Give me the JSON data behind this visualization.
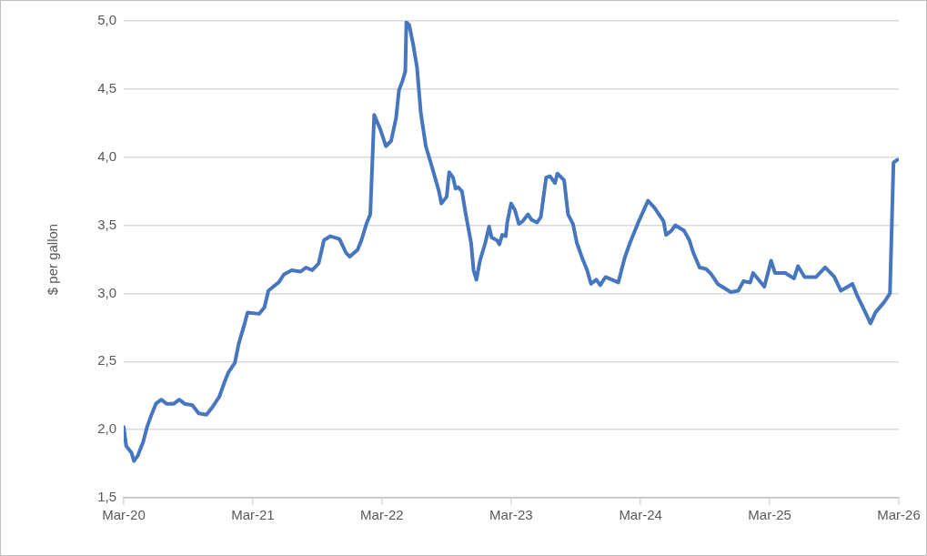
{
  "chart_data": {
    "type": "line",
    "ylabel": "$ per gallon",
    "x": [
      "2020-03-01",
      "2020-03-08",
      "2020-03-23",
      "2020-03-30",
      "2020-04-10",
      "2020-04-25",
      "2020-05-06",
      "2020-05-20",
      "2020-05-31",
      "2020-06-15",
      "2020-06-30",
      "2020-07-21",
      "2020-08-05",
      "2020-08-20",
      "2020-09-11",
      "2020-09-29",
      "2020-10-21",
      "2020-11-08",
      "2020-11-26",
      "2020-12-11",
      "2020-12-22",
      "2021-01-09",
      "2021-01-20",
      "2021-02-07",
      "2021-02-14",
      "2021-03-19",
      "2021-04-03",
      "2021-04-14",
      "2021-04-28",
      "2021-05-13",
      "2021-05-28",
      "2021-06-19",
      "2021-07-14",
      "2021-07-29",
      "2021-08-16",
      "2021-09-03",
      "2021-09-18",
      "2021-10-06",
      "2021-11-01",
      "2021-11-19",
      "2021-11-30",
      "2021-12-22",
      "2022-01-02",
      "2022-01-16",
      "2022-01-27",
      "2022-02-07",
      "2022-02-25",
      "2022-03-12",
      "2022-03-27",
      "2022-04-10",
      "2022-04-18",
      "2022-04-28",
      "2022-05-06",
      "2022-05-09",
      "2022-05-17",
      "2022-05-28",
      "2022-06-08",
      "2022-06-19",
      "2022-07-03",
      "2022-07-18",
      "2022-07-29",
      "2022-08-09",
      "2022-08-16",
      "2022-08-31",
      "2022-09-07",
      "2022-09-18",
      "2022-09-25",
      "2022-10-02",
      "2022-10-13",
      "2022-10-24",
      "2022-11-08",
      "2022-11-15",
      "2022-11-23",
      "2022-12-03",
      "2022-12-18",
      "2022-12-29",
      "2023-01-05",
      "2023-01-20",
      "2023-01-27",
      "2023-02-04",
      "2023-02-14",
      "2023-02-18",
      "2023-03-01",
      "2023-03-12",
      "2023-03-23",
      "2023-04-03",
      "2023-04-18",
      "2023-04-28",
      "2023-05-13",
      "2023-05-24",
      "2023-06-08",
      "2023-06-19",
      "2023-07-03",
      "2023-07-10",
      "2023-07-29",
      "2023-08-09",
      "2023-08-23",
      "2023-09-03",
      "2023-09-18",
      "2023-10-02",
      "2023-10-13",
      "2023-10-28",
      "2023-11-08",
      "2023-11-23",
      "2023-12-29",
      "2024-01-16",
      "2024-01-31",
      "2024-02-25",
      "2024-03-22",
      "2024-04-09",
      "2024-05-05",
      "2024-05-12",
      "2024-05-27",
      "2024-06-07",
      "2024-07-02",
      "2024-07-17",
      "2024-07-28",
      "2024-08-15",
      "2024-09-02",
      "2024-09-17",
      "2024-10-05",
      "2024-11-11",
      "2024-12-02",
      "2024-12-17",
      "2025-01-05",
      "2025-01-13",
      "2025-02-14",
      "2025-03-05",
      "2025-03-16",
      "2025-04-14",
      "2025-05-09",
      "2025-05-20",
      "2025-06-08",
      "2025-07-10",
      "2025-08-05",
      "2025-08-31",
      "2025-09-18",
      "2025-10-21",
      "2025-11-04",
      "2025-11-23",
      "2025-12-11",
      "2025-12-25",
      "2026-01-20",
      "2026-02-04",
      "2026-02-14",
      "2026-02-25"
    ],
    "series": [
      {
        "color": "#4677be",
        "values": [
          2.02,
          1.88,
          1.83,
          1.77,
          1.81,
          1.91,
          2.02,
          2.12,
          2.19,
          2.22,
          2.19,
          2.19,
          2.22,
          2.19,
          2.18,
          2.12,
          2.11,
          2.17,
          2.24,
          2.35,
          2.42,
          2.49,
          2.63,
          2.79,
          2.86,
          2.85,
          2.9,
          3.02,
          3.05,
          3.08,
          3.14,
          3.17,
          3.16,
          3.19,
          3.17,
          3.22,
          3.39,
          3.42,
          3.4,
          3.3,
          3.27,
          3.32,
          3.39,
          3.51,
          3.58,
          4.31,
          4.2,
          4.08,
          4.12,
          4.29,
          4.49,
          4.56,
          4.63,
          4.99,
          4.97,
          4.83,
          4.66,
          4.32,
          4.08,
          3.95,
          3.85,
          3.75,
          3.66,
          3.71,
          3.89,
          3.85,
          3.77,
          3.78,
          3.75,
          3.58,
          3.37,
          3.17,
          3.1,
          3.24,
          3.37,
          3.49,
          3.41,
          3.39,
          3.36,
          3.43,
          3.42,
          3.52,
          3.66,
          3.61,
          3.51,
          3.53,
          3.58,
          3.54,
          3.52,
          3.56,
          3.85,
          3.86,
          3.81,
          3.88,
          3.83,
          3.58,
          3.51,
          3.37,
          3.26,
          3.17,
          3.07,
          3.1,
          3.06,
          3.12,
          3.08,
          3.26,
          3.37,
          3.53,
          3.68,
          3.63,
          3.53,
          3.43,
          3.46,
          3.5,
          3.46,
          3.39,
          3.3,
          3.19,
          3.18,
          3.14,
          3.07,
          3.01,
          3.02,
          3.09,
          3.08,
          3.15,
          3.05,
          3.24,
          3.15,
          3.15,
          3.11,
          3.2,
          3.12,
          3.12,
          3.19,
          3.12,
          3.02,
          3.07,
          2.98,
          2.88,
          2.78,
          2.86,
          2.94,
          3.0,
          3.96,
          3.98
        ]
      }
    ],
    "xlim": [
      "2020-03-01",
      "2026-03-01"
    ],
    "xticks": [
      {
        "value": "2020-03-01",
        "label": "Mar-20"
      },
      {
        "value": "2021-03-01",
        "label": "Mar-21"
      },
      {
        "value": "2022-03-01",
        "label": "Mar-22"
      },
      {
        "value": "2023-03-01",
        "label": "Mar-23"
      },
      {
        "value": "2024-03-01",
        "label": "Mar-24"
      },
      {
        "value": "2025-03-01",
        "label": "Mar-25"
      },
      {
        "value": "2026-03-01",
        "label": "Mar-26"
      }
    ],
    "ylim": [
      1.5,
      5
    ],
    "yticks": [
      {
        "value": 1.5,
        "label": "1,5"
      },
      {
        "value": 2,
        "label": "2,0"
      },
      {
        "value": 2.5,
        "label": "2,5"
      },
      {
        "value": 3,
        "label": "3,0"
      },
      {
        "value": 3.5,
        "label": "3,5"
      },
      {
        "value": 4,
        "label": "4,0"
      },
      {
        "value": 4.5,
        "label": "4,5"
      },
      {
        "value": 5,
        "label": "5,0"
      }
    ],
    "grid": "y",
    "legend": false,
    "marker": "none",
    "line_style": "solid"
  }
}
